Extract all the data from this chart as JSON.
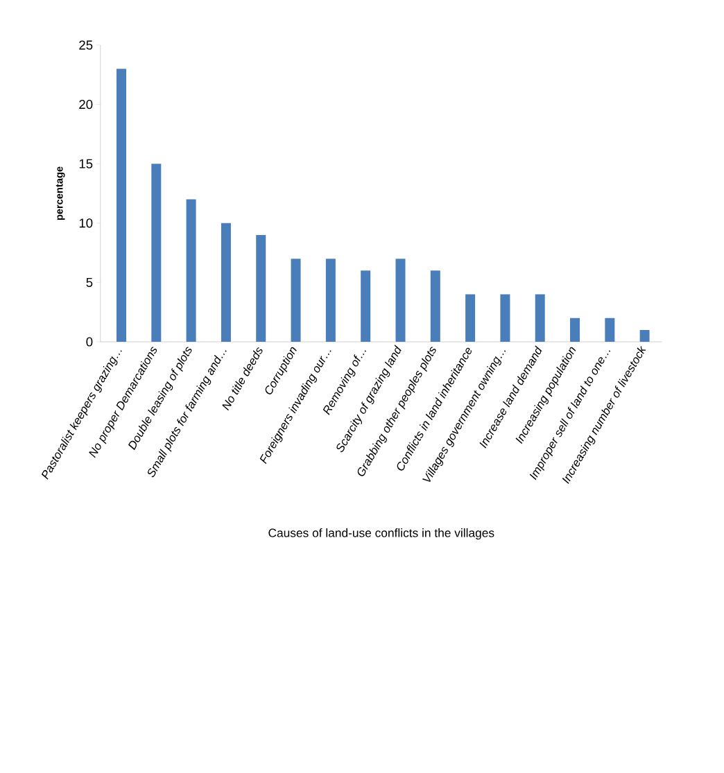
{
  "chart_data": {
    "type": "bar",
    "xlabel": "Causes of land-use conflicts in the villages",
    "ylabel": "percentage",
    "categories": [
      "Pastoralist keepers grazing…",
      "No proper Demarcations",
      "Double leasing of plots",
      "Small plots for farming and…",
      "No title deeds",
      "Corruption",
      "Foreigners invading our…",
      "Removing of…",
      "Scarcity of grazing land",
      "Grabbing other peoples plots",
      "Conflicts in land inheritance",
      "Villages government owning…",
      "Increase land demand",
      "Increasing population",
      "Improper sell of land to one…",
      "Increasing number of livestock"
    ],
    "values": [
      23,
      15,
      12,
      10,
      9,
      7,
      7,
      6,
      7,
      6,
      4,
      4,
      4,
      2,
      2,
      1
    ],
    "color": "#4a7ebb",
    "ylim": [
      0,
      25
    ],
    "yticks": [
      0,
      5,
      10,
      15,
      20,
      25
    ],
    "grid": false
  }
}
